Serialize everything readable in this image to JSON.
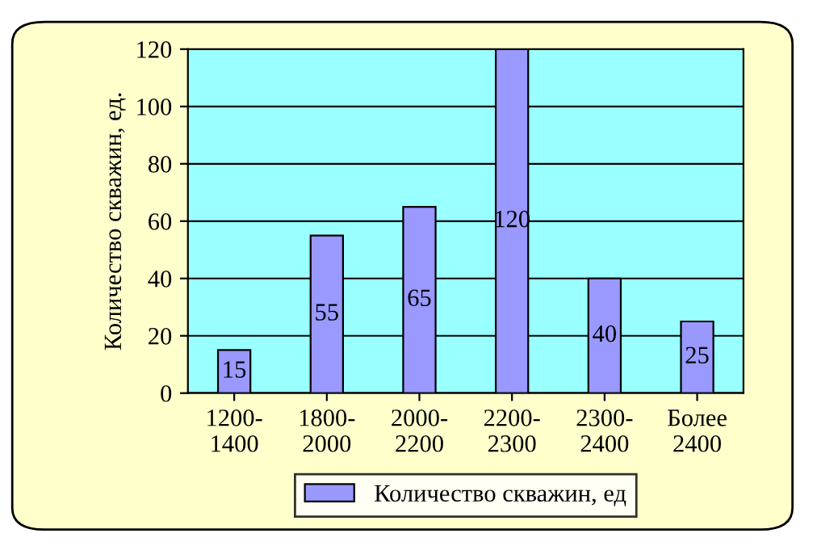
{
  "chart_data": {
    "type": "bar",
    "ylabel": "Количество скважин, ед.",
    "categories": [
      "1200-\n1400",
      "1800-\n2000",
      "2000-\n2200",
      "2200-\n2300",
      "2300-\n2400",
      "Более\n2400"
    ],
    "series": [
      {
        "name": "Количество скважин, ед",
        "color": "#9999ff",
        "values": [
          15,
          55,
          65,
          120,
          40,
          25
        ]
      }
    ],
    "ylim": [
      0,
      120
    ],
    "yticks": [
      0,
      20,
      40,
      60,
      80,
      100,
      120
    ],
    "grid": "y",
    "legend": "bottom",
    "data_labels": true
  }
}
